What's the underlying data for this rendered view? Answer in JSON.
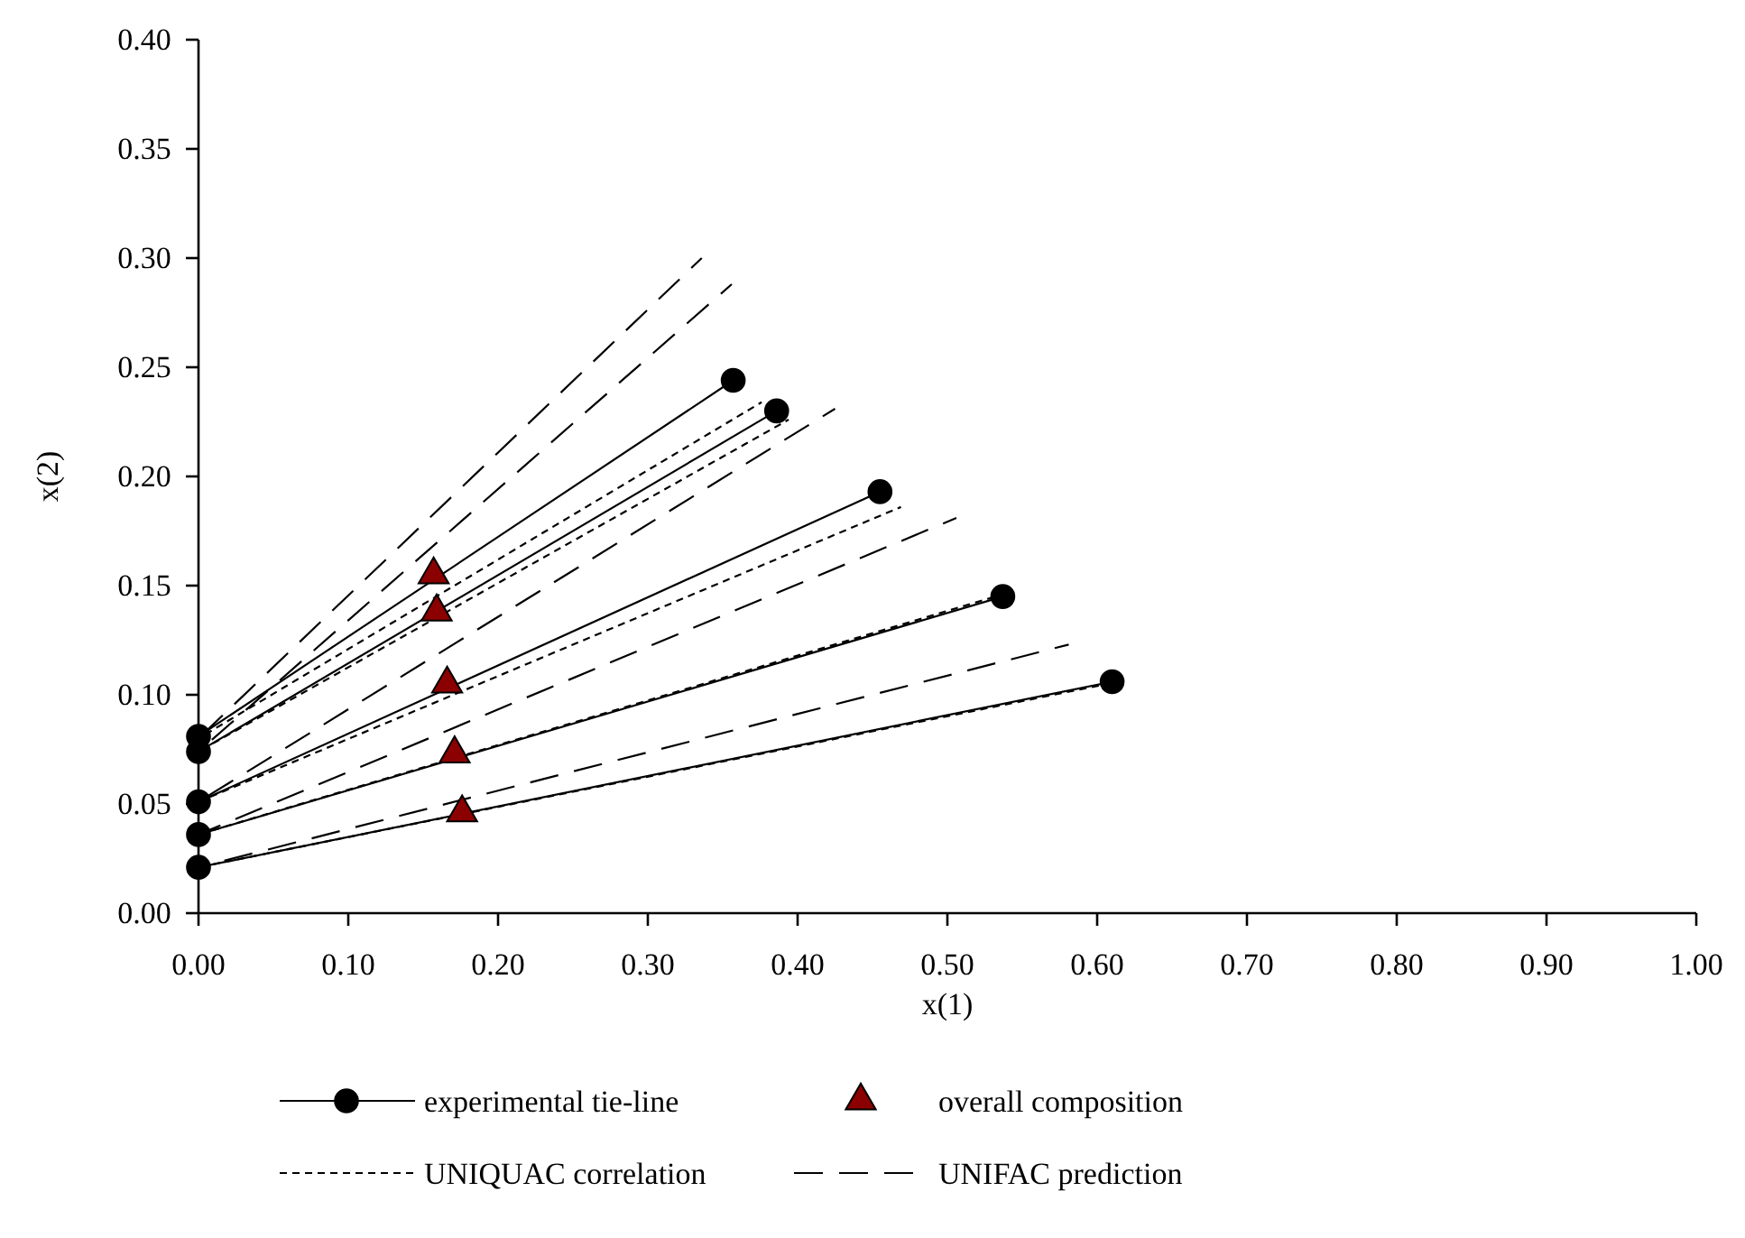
{
  "chart_data": {
    "type": "line",
    "xlabel": "x(1)",
    "ylabel": "x(2)",
    "xlim": [
      0,
      1
    ],
    "ylim": [
      0,
      0.4
    ],
    "xticks": [
      {
        "value": 0,
        "label": "0.00"
      },
      {
        "value": 0.1,
        "label": "0.10"
      },
      {
        "value": 0.2,
        "label": "0.20"
      },
      {
        "value": 0.3,
        "label": "0.30"
      },
      {
        "value": 0.4,
        "label": "0.40"
      },
      {
        "value": 0.5,
        "label": "0.50"
      },
      {
        "value": 0.6,
        "label": "0.60"
      },
      {
        "value": 0.7,
        "label": "0.70"
      },
      {
        "value": 0.8,
        "label": "0.80"
      },
      {
        "value": 0.9,
        "label": "0.90"
      },
      {
        "value": 1,
        "label": "1.00"
      }
    ],
    "yticks": [
      {
        "value": 0,
        "label": "0.00"
      },
      {
        "value": 0.05,
        "label": "0.05"
      },
      {
        "value": 0.1,
        "label": "0.10"
      },
      {
        "value": 0.15,
        "label": "0.15"
      },
      {
        "value": 0.2,
        "label": "0.20"
      },
      {
        "value": 0.25,
        "label": "0.25"
      },
      {
        "value": 0.3,
        "label": "0.30"
      },
      {
        "value": 0.35,
        "label": "0.35"
      },
      {
        "value": 0.4,
        "label": "0.40"
      }
    ],
    "legend": "bottom",
    "series": [
      {
        "name": "experimental tie-line",
        "color": "#000000",
        "marker": "circle",
        "line_style": "solid",
        "x": [
          0,
          0.357
        ],
        "values": [
          0.081,
          0.244
        ]
      },
      {
        "type": "line",
        "color": "#000000",
        "marker": "circle",
        "line_style": "solid",
        "x": [
          0,
          0.386
        ],
        "values": [
          0.074,
          0.23
        ]
      },
      {
        "type": "line",
        "color": "#000000",
        "marker": "circle",
        "line_style": "solid",
        "x": [
          0,
          0.455
        ],
        "values": [
          0.051,
          0.193
        ]
      },
      {
        "type": "line",
        "color": "#000000",
        "marker": "circle",
        "line_style": "solid",
        "x": [
          0,
          0.537
        ],
        "values": [
          0.036,
          0.145
        ]
      },
      {
        "type": "line",
        "color": "#000000",
        "marker": "circle",
        "line_style": "solid",
        "x": [
          0,
          0.61
        ],
        "values": [
          0.021,
          0.106
        ]
      },
      {
        "name": "overall composition",
        "type": "scatter",
        "color": "#8b0000",
        "marker": "triangle",
        "x": [
          0.157,
          0.159,
          0.166,
          0.171,
          0.176
        ],
        "values": [
          0.155,
          0.138,
          0.105,
          0.073,
          0.046
        ]
      },
      {
        "name": "UNIQUAC correlation",
        "type": "line",
        "color": "#000000",
        "marker": "none",
        "line_style": "dotted",
        "x": [
          0,
          0.376
        ],
        "values": [
          0.08,
          0.234
        ]
      },
      {
        "type": "line",
        "color": "#000000",
        "marker": "none",
        "line_style": "dotted",
        "x": [
          0,
          0.394
        ],
        "values": [
          0.074,
          0.226
        ]
      },
      {
        "type": "line",
        "color": "#000000",
        "marker": "none",
        "line_style": "dotted",
        "x": [
          0,
          0.469
        ],
        "values": [
          0.051,
          0.186
        ]
      },
      {
        "type": "line",
        "color": "#000000",
        "marker": "none",
        "line_style": "dotted",
        "x": [
          0,
          0.537
        ],
        "values": [
          0.036,
          0.146
        ]
      },
      {
        "type": "line",
        "color": "#000000",
        "marker": "none",
        "line_style": "dotted",
        "x": [
          0,
          0.607
        ],
        "values": [
          0.021,
          0.105
        ]
      },
      {
        "name": "UNIFAC prediction",
        "type": "line",
        "color": "#000000",
        "marker": "none",
        "line_style": "dashed",
        "x": [
          0,
          0.336
        ],
        "values": [
          0.08,
          0.3
        ]
      },
      {
        "type": "line",
        "color": "#000000",
        "marker": "none",
        "line_style": "dashed",
        "x": [
          0,
          0.356
        ],
        "values": [
          0.074,
          0.288
        ]
      },
      {
        "type": "line",
        "color": "#000000",
        "marker": "none",
        "line_style": "dashed",
        "x": [
          0,
          0.425
        ],
        "values": [
          0.051,
          0.231
        ]
      },
      {
        "type": "line",
        "color": "#000000",
        "marker": "none",
        "line_style": "dashed",
        "x": [
          0,
          0.506
        ],
        "values": [
          0.036,
          0.181
        ]
      },
      {
        "type": "line",
        "color": "#000000",
        "marker": "none",
        "line_style": "dashed",
        "x": [
          0,
          0.581
        ],
        "values": [
          0.021,
          0.123
        ]
      }
    ]
  }
}
